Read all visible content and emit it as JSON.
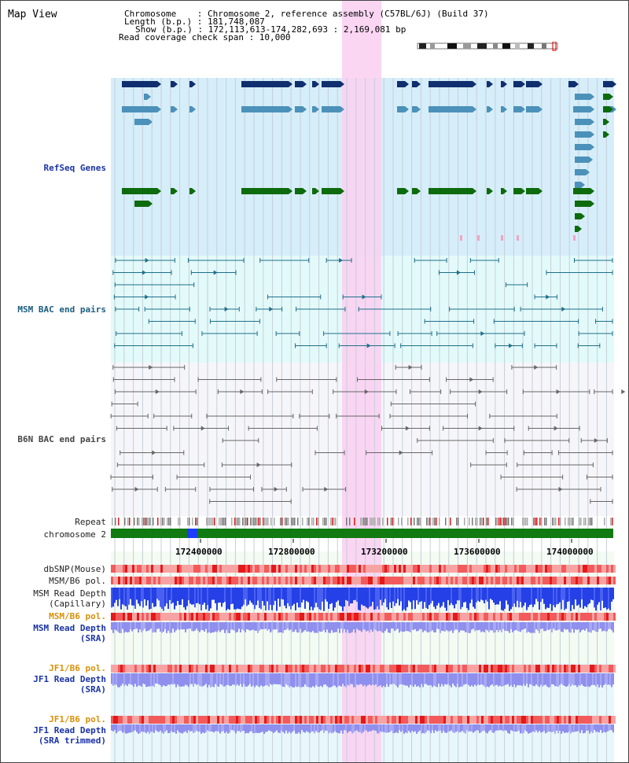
{
  "header": {
    "title": "Map View",
    "info_lines": [
      "Chromosome    : Chromosome 2, reference assembly (C57BL/6J) (Build 37)",
      "Length (b.p.) : 181,748,087",
      "Show (b.p.) : 172,113,613-174,282,693 : 2,169,081 bp",
      "Read coverage check span : 10,000"
    ]
  },
  "tracks": {
    "refseq": "RefSeq Genes",
    "msm_bac": "MSM BAC end pairs",
    "b6n_bac": "B6N BAC end pairs",
    "repeat": "Repeat",
    "chromosome": "chromosome 2",
    "dbsnp": "dbSNP(Mouse)",
    "msm_b6_pol_1": "MSM/B6 pol.",
    "msm_read_depth_cap_1": "MSM Read Depth",
    "msm_read_depth_cap_2": "(Capillary)",
    "msm_b6_pol_2": "MSM/B6 pol.",
    "msm_read_depth_sra_1": "MSM Read Depth",
    "msm_read_depth_sra_2": "(SRA)",
    "jf1_b6_pol_1": "JF1/B6 pol.",
    "jf1_read_depth_sra_1": "JF1 Read Depth",
    "jf1_read_depth_sra_2": "(SRA)",
    "jf1_b6_pol_2": "JF1/B6 pol.",
    "jf1_read_depth_trim_1": "JF1 Read Depth",
    "jf1_read_depth_trim_2": "(SRA trimmed)"
  },
  "axis": {
    "ticks": [
      "172400000",
      "172800000",
      "173200000",
      "173600000",
      "174000000"
    ]
  },
  "colors": {
    "refseq_bg": "#d6eefa",
    "msm_bac_bg": "#e3fafa",
    "b6n_bac_bg": "#f6f6fa",
    "highlight": "#f9d2f2",
    "refseq_dark": "#0f2f6e",
    "refseq_light": "#4b91b9",
    "refseq_green": "#0d6b0d",
    "msm_line": "#1e6f8a",
    "b6n_line": "#666666",
    "chromosome": "#117a11",
    "chromosome_marker": "#1d3cff",
    "snp_red": "#ee3b3b",
    "depth_blue": "#2440e6",
    "depth_light": "#8f8fee"
  }
}
